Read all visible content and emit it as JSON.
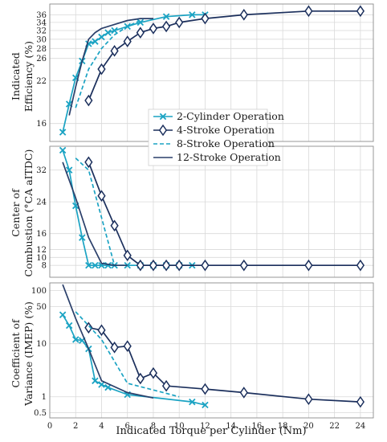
{
  "colors": {
    "two_cyl": "#1ba3c3",
    "four_stroke": "#1b2f5c",
    "eight_stroke": "#1ba3c3",
    "twelve_stroke": "#2a3f6a",
    "grid": "#d9d9d9",
    "frame": "#8c8c8c"
  },
  "chart_data": [
    {
      "type": "line",
      "ylabel": [
        "Indicated",
        "Efficiency (%)"
      ],
      "yscale": "log",
      "ylim": [
        14,
        39
      ],
      "yticks": [
        16,
        22,
        26,
        28,
        30,
        32,
        34,
        36
      ],
      "xlim": [
        0,
        25
      ],
      "xticks": [
        0,
        2,
        4,
        6,
        8,
        10,
        12,
        14,
        16,
        18,
        20,
        22,
        24
      ],
      "grid": true,
      "legend": {
        "placement": "bottom-middle",
        "entries": [
          "2-Cylinder Operation",
          "4-Stroke Operation",
          "8-Stroke Operation",
          "12-Stroke Operation"
        ]
      },
      "series": [
        {
          "name": "2-Cylinder Operation",
          "style": "solid",
          "marker": "x",
          "color_key": "two_cyl",
          "x": [
            1,
            1.5,
            2,
            2.5,
            3,
            3.5,
            4,
            4.5,
            5,
            6,
            7,
            9,
            11,
            12
          ],
          "y": [
            15,
            18.5,
            22.5,
            25.5,
            29,
            29.5,
            30.5,
            31.5,
            32,
            33,
            34,
            35.5,
            36,
            36
          ]
        },
        {
          "name": "4-Stroke Operation",
          "style": "solid",
          "marker": "diamond",
          "color_key": "four_stroke",
          "x": [
            3,
            4,
            5,
            6,
            7,
            8,
            9,
            10,
            12,
            15,
            20,
            24
          ],
          "y": [
            19,
            24,
            27.5,
            29.5,
            31.5,
            32.5,
            33,
            34,
            35,
            36,
            37,
            37
          ]
        },
        {
          "name": "8-Stroke Operation",
          "style": "dashed",
          "marker": "none",
          "color_key": "eight_stroke",
          "x": [
            2,
            3,
            4,
            5,
            6,
            7
          ],
          "y": [
            18,
            24,
            28,
            31,
            33,
            34.5
          ]
        },
        {
          "name": "12-Stroke Operation",
          "style": "solid",
          "marker": "none",
          "color_key": "twelve_stroke",
          "x": [
            1.5,
            2,
            2.5,
            3,
            3.5,
            4,
            5,
            6,
            7,
            8
          ],
          "y": [
            17,
            21,
            25.5,
            30,
            31.5,
            32.5,
            33.5,
            34.5,
            35,
            35
          ]
        }
      ]
    },
    {
      "type": "line",
      "ylabel": [
        "Center of",
        "Combustion (°CA aITDC)"
      ],
      "yscale": "linear",
      "ylim": [
        5,
        38
      ],
      "yticks": [
        8,
        10,
        12,
        16,
        24,
        32
      ],
      "xlim": [
        0,
        25
      ],
      "xticks": [
        0,
        2,
        4,
        6,
        8,
        10,
        12,
        14,
        16,
        18,
        20,
        22,
        24
      ],
      "grid": true,
      "series": [
        {
          "name": "2-Cylinder Operation",
          "style": "solid",
          "marker": "x",
          "color_key": "two_cyl",
          "x": [
            1,
            1.5,
            2,
            2.5,
            3,
            3.5,
            4,
            4.5,
            5,
            6,
            7,
            8,
            9,
            10,
            11
          ],
          "y": [
            37,
            32,
            23,
            15,
            8,
            8,
            8,
            8,
            8,
            8,
            8,
            8,
            8,
            8,
            8
          ]
        },
        {
          "name": "4-Stroke Operation",
          "style": "solid",
          "marker": "diamond",
          "color_key": "four_stroke",
          "x": [
            3,
            4,
            5,
            6,
            7,
            8,
            9,
            10,
            12,
            15,
            20,
            24
          ],
          "y": [
            34,
            25.5,
            18,
            10.5,
            8,
            8,
            8,
            8,
            8,
            8,
            8,
            8
          ]
        },
        {
          "name": "8-Stroke Operation",
          "style": "dashed",
          "marker": "none",
          "color_key": "eight_stroke",
          "x": [
            2,
            3,
            4,
            5,
            6
          ],
          "y": [
            35,
            32,
            20,
            8,
            8
          ]
        },
        {
          "name": "12-Stroke Operation",
          "style": "solid",
          "marker": "none",
          "color_key": "twelve_stroke",
          "x": [
            1,
            2,
            3,
            4,
            5,
            6
          ],
          "y": [
            34,
            25,
            15,
            8.5,
            8,
            8
          ]
        }
      ]
    },
    {
      "type": "line",
      "ylabel": [
        "Coefficient of",
        "Variance (IMEP) (%)"
      ],
      "yscale": "log",
      "ylim": [
        0.4,
        140
      ],
      "yticks": [
        0.5,
        1,
        10,
        50,
        100
      ],
      "ytick_labels": [
        "0.5",
        "1",
        "10",
        "50",
        "100"
      ],
      "xlim": [
        0,
        25
      ],
      "xticks": [
        0,
        2,
        4,
        6,
        8,
        10,
        12,
        14,
        16,
        18,
        20,
        22,
        24
      ],
      "xlabel": "Indicated Torque per Cylinder (Nm)",
      "grid": true,
      "series": [
        {
          "name": "2-Cylinder Operation",
          "style": "solid",
          "marker": "x",
          "color_key": "two_cyl",
          "x": [
            1,
            1.5,
            2,
            2.5,
            3,
            3.5,
            4,
            4.5,
            6,
            11,
            12
          ],
          "y": [
            35,
            22,
            12,
            11.5,
            8,
            2,
            1.7,
            1.5,
            1.1,
            0.8,
            0.7
          ]
        },
        {
          "name": "4-Stroke Operation",
          "style": "solid",
          "marker": "diamond",
          "color_key": "four_stroke",
          "x": [
            3,
            4,
            5,
            6,
            7,
            8,
            9,
            12,
            15,
            20,
            24
          ],
          "y": [
            20,
            18,
            8.5,
            9,
            2.2,
            2.8,
            1.6,
            1.4,
            1.2,
            0.9,
            0.8
          ]
        },
        {
          "name": "8-Stroke Operation",
          "style": "dashed",
          "marker": "none",
          "color_key": "eight_stroke",
          "x": [
            2,
            4,
            6,
            10
          ],
          "y": [
            40,
            12,
            1.8,
            1
          ]
        },
        {
          "name": "12-Stroke Operation",
          "style": "solid",
          "marker": "none",
          "color_key": "twelve_stroke",
          "x": [
            1,
            2,
            3,
            4,
            6,
            8
          ],
          "y": [
            130,
            30,
            8,
            2,
            1.2,
            0.95
          ]
        }
      ]
    }
  ]
}
